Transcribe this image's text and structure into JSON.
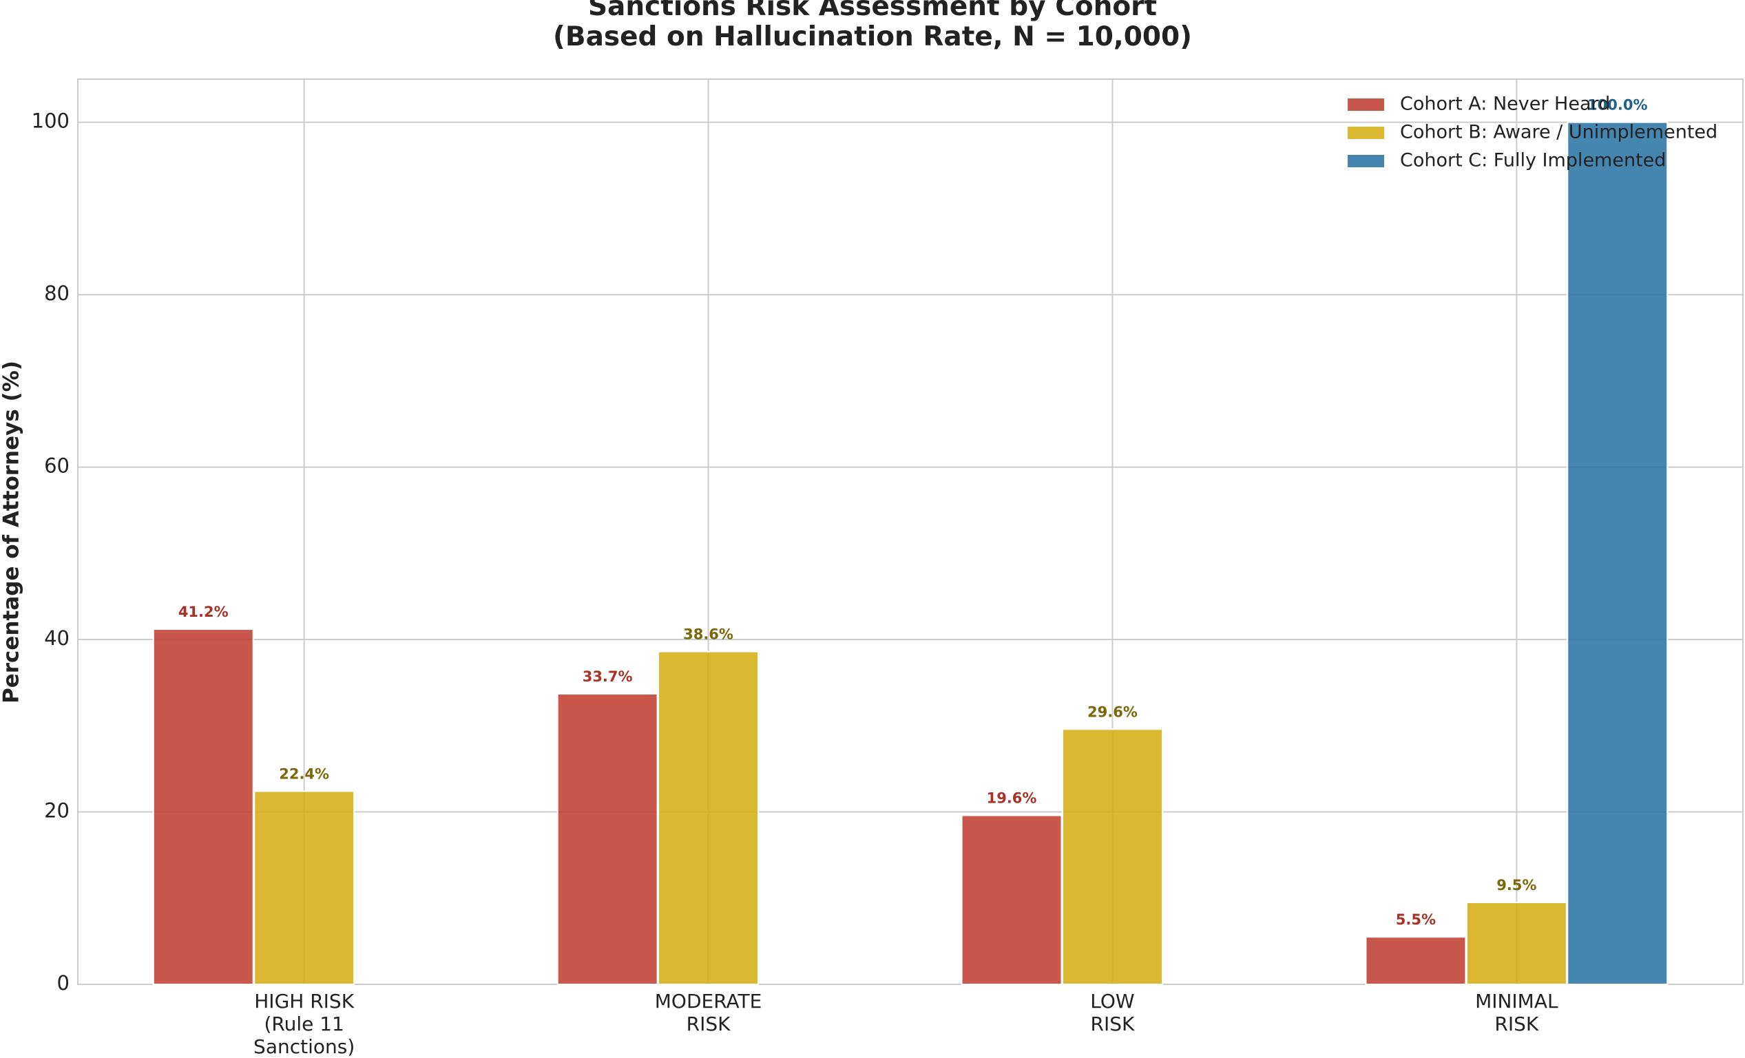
{
  "chart_data": {
    "type": "bar",
    "title": "Sanctions Risk Assessment by Cohort\n(Based on Hallucination Rate, N = 10,000)",
    "y_label": "Percentage of Attorneys (%)",
    "categories": [
      "HIGH RISK\n(Rule 11\nSanctions)",
      "MODERATE\nRISK",
      "LOW\nRISK",
      "MINIMAL\nRISK"
    ],
    "series": [
      {
        "name": "Cohort A: Never Heard",
        "color": "#c0392b",
        "label_color": "#a93226",
        "values": [
          41.2,
          33.7,
          19.6,
          5.5
        ],
        "value_labels": [
          "41.2%",
          "33.7%",
          "19.6%",
          "5.5%"
        ]
      },
      {
        "name": "Cohort B: Aware / Unimplemented",
        "color": "#d4ac0d",
        "label_color": "#7d6608",
        "values": [
          22.4,
          38.6,
          29.6,
          9.5
        ],
        "value_labels": [
          "22.4%",
          "38.6%",
          "29.6%",
          "9.5%"
        ]
      },
      {
        "name": "Cohort C: Fully Implemented",
        "color": "#2471a3",
        "label_color": "#1f618d",
        "values": [
          0,
          0,
          0,
          100
        ],
        "value_labels": [
          null,
          null,
          null,
          "100.0%"
        ]
      }
    ],
    "ylim": [
      0,
      105
    ],
    "yticks": [
      0,
      20,
      40,
      60,
      80,
      100
    ],
    "grid": true,
    "legend": "upper right"
  }
}
